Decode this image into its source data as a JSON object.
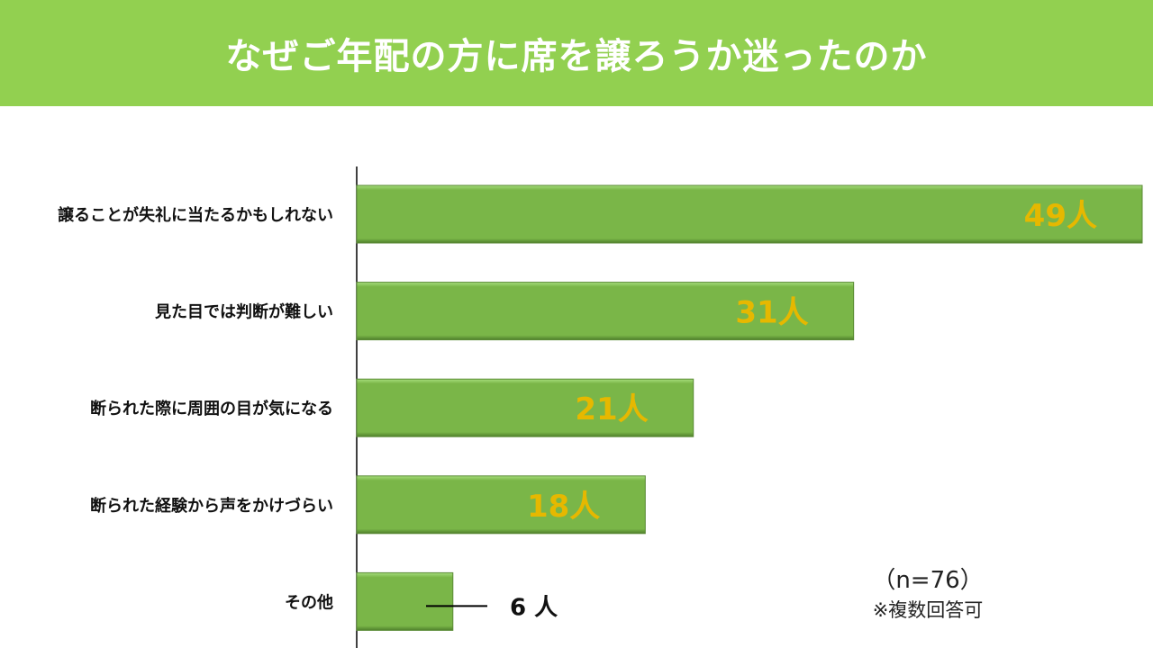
{
  "chart_data": {
    "type": "bar",
    "orientation": "horizontal",
    "title": "なぜご年配の方に席を譲ろうか迷ったのか",
    "categories": [
      "譲ることが失礼に当たるかもしれない",
      "見た目では判断が難しい",
      "断られた際に周囲の目が気になる",
      "断られた経験から声をかけづらい",
      "その他"
    ],
    "values": [
      49,
      31,
      21,
      18,
      6
    ],
    "labels": [
      "49人",
      "31人",
      "21人",
      "18人",
      "6 人"
    ],
    "unit": "人",
    "xlim": [
      0,
      49
    ],
    "xlabel": "",
    "ylabel": "",
    "grid": false,
    "bar_color": "#7ab648",
    "label_color": "#e6b800",
    "sample_size": "（n=76）",
    "note": "※複数回答可"
  }
}
